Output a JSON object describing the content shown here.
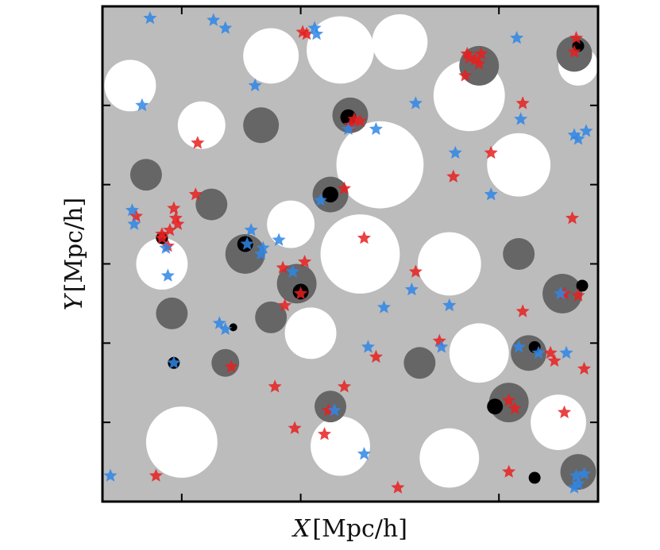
{
  "chart_data": {
    "type": "scatter",
    "title": "",
    "xlabel": "X [Mpc/h]",
    "ylabel": "Y [Mpc/h]",
    "xlim": [
      0,
      250
    ],
    "ylim": [
      0,
      250
    ],
    "x_ticks": [
      0,
      40,
      100,
      200,
      250
    ],
    "y_ticks": [
      0,
      40,
      80,
      120,
      160,
      200,
      250
    ],
    "tick_labels_shown": false,
    "grid": false,
    "legend": "none",
    "background": {
      "kind": "density-field",
      "levels": [
        "void",
        "sheet",
        "filament",
        "knot"
      ],
      "colors": {
        "void": "#ffffff",
        "sheet": "#bcbcbc",
        "filament": "#666666",
        "knot": "#000000"
      },
      "blobs": [
        {
          "level": "void",
          "x": 14,
          "y": 210,
          "r": 13
        },
        {
          "level": "void",
          "x": 85,
          "y": 225,
          "r": 14
        },
        {
          "level": "void",
          "x": 120,
          "y": 228,
          "r": 17
        },
        {
          "level": "void",
          "x": 150,
          "y": 232,
          "r": 14
        },
        {
          "level": "void",
          "x": 185,
          "y": 205,
          "r": 18
        },
        {
          "level": "void",
          "x": 210,
          "y": 170,
          "r": 16
        },
        {
          "level": "void",
          "x": 50,
          "y": 190,
          "r": 12
        },
        {
          "level": "void",
          "x": 140,
          "y": 170,
          "r": 22
        },
        {
          "level": "void",
          "x": 130,
          "y": 125,
          "r": 20
        },
        {
          "level": "void",
          "x": 175,
          "y": 120,
          "r": 16
        },
        {
          "level": "void",
          "x": 95,
          "y": 140,
          "r": 12
        },
        {
          "level": "void",
          "x": 30,
          "y": 120,
          "r": 13
        },
        {
          "level": "void",
          "x": 105,
          "y": 85,
          "r": 13
        },
        {
          "level": "void",
          "x": 190,
          "y": 75,
          "r": 15
        },
        {
          "level": "void",
          "x": 40,
          "y": 30,
          "r": 18
        },
        {
          "level": "void",
          "x": 120,
          "y": 28,
          "r": 15
        },
        {
          "level": "void",
          "x": 175,
          "y": 22,
          "r": 15
        },
        {
          "level": "void",
          "x": 230,
          "y": 40,
          "r": 14
        },
        {
          "level": "void",
          "x": 240,
          "y": 220,
          "r": 10
        },
        {
          "level": "filament",
          "x": 35,
          "y": 95,
          "r": 8
        },
        {
          "level": "filament",
          "x": 55,
          "y": 150,
          "r": 8
        },
        {
          "level": "filament",
          "x": 80,
          "y": 190,
          "r": 9
        },
        {
          "level": "filament",
          "x": 72,
          "y": 125,
          "r": 10
        },
        {
          "level": "filament",
          "x": 98,
          "y": 110,
          "r": 10
        },
        {
          "level": "filament",
          "x": 115,
          "y": 155,
          "r": 9
        },
        {
          "level": "filament",
          "x": 125,
          "y": 195,
          "r": 9
        },
        {
          "level": "filament",
          "x": 190,
          "y": 220,
          "r": 10
        },
        {
          "level": "filament",
          "x": 238,
          "y": 226,
          "r": 9
        },
        {
          "level": "filament",
          "x": 210,
          "y": 125,
          "r": 8
        },
        {
          "level": "filament",
          "x": 232,
          "y": 105,
          "r": 10
        },
        {
          "level": "filament",
          "x": 215,
          "y": 75,
          "r": 9
        },
        {
          "level": "filament",
          "x": 205,
          "y": 50,
          "r": 10
        },
        {
          "level": "filament",
          "x": 160,
          "y": 70,
          "r": 8
        },
        {
          "level": "filament",
          "x": 115,
          "y": 48,
          "r": 8
        },
        {
          "level": "filament",
          "x": 62,
          "y": 70,
          "r": 7
        },
        {
          "level": "filament",
          "x": 22,
          "y": 165,
          "r": 8
        },
        {
          "level": "filament",
          "x": 85,
          "y": 93,
          "r": 8
        },
        {
          "level": "filament",
          "x": 240,
          "y": 15,
          "r": 9
        },
        {
          "level": "knot",
          "x": 124,
          "y": 194,
          "r": 4
        },
        {
          "level": "knot",
          "x": 115,
          "y": 155,
          "r": 4
        },
        {
          "level": "knot",
          "x": 72,
          "y": 130,
          "r": 4
        },
        {
          "level": "knot",
          "x": 30,
          "y": 133,
          "r": 3
        },
        {
          "level": "knot",
          "x": 100,
          "y": 106,
          "r": 4
        },
        {
          "level": "knot",
          "x": 36,
          "y": 70,
          "r": 3
        },
        {
          "level": "knot",
          "x": 198,
          "y": 48,
          "r": 4
        },
        {
          "level": "knot",
          "x": 242,
          "y": 109,
          "r": 3
        },
        {
          "level": "knot",
          "x": 240,
          "y": 230,
          "r": 3
        },
        {
          "level": "knot",
          "x": 218,
          "y": 78,
          "r": 3
        },
        {
          "level": "knot",
          "x": 218,
          "y": 12,
          "r": 3
        },
        {
          "level": "knot",
          "x": 66,
          "y": 88,
          "r": 2
        }
      ]
    },
    "series": [
      {
        "color": "#e82020",
        "marker": "star",
        "points": [
          [
            101,
            237
          ],
          [
            103,
            236
          ],
          [
            184,
            226
          ],
          [
            185,
            224
          ],
          [
            188,
            223
          ],
          [
            191,
            226
          ],
          [
            190,
            221
          ],
          [
            183,
            215
          ],
          [
            239,
            234
          ],
          [
            238,
            227
          ],
          [
            212,
            201
          ],
          [
            127,
            193
          ],
          [
            130,
            192
          ],
          [
            125,
            190
          ],
          [
            48,
            181
          ],
          [
            196,
            176
          ],
          [
            177,
            164
          ],
          [
            122,
            158
          ],
          [
            47,
            155
          ],
          [
            237,
            143
          ],
          [
            36,
            148
          ],
          [
            37,
            143
          ],
          [
            38,
            140
          ],
          [
            17,
            144
          ],
          [
            30,
            135
          ],
          [
            34,
            137
          ],
          [
            30,
            133
          ],
          [
            33,
            129
          ],
          [
            132,
            133
          ],
          [
            102,
            121
          ],
          [
            91,
            118
          ],
          [
            158,
            116
          ],
          [
            100,
            105
          ],
          [
            92,
            99
          ],
          [
            233,
            105
          ],
          [
            240,
            104
          ],
          [
            212,
            96
          ],
          [
            170,
            81
          ],
          [
            226,
            75
          ],
          [
            228,
            71
          ],
          [
            65,
            68
          ],
          [
            243,
            67
          ],
          [
            138,
            73
          ],
          [
            87,
            58
          ],
          [
            122,
            58
          ],
          [
            114,
            46
          ],
          [
            205,
            51
          ],
          [
            208,
            47
          ],
          [
            233,
            45
          ],
          [
            97,
            37
          ],
          [
            112,
            34
          ],
          [
            27,
            13
          ],
          [
            149,
            7
          ],
          [
            205,
            15
          ]
        ]
      },
      {
        "color": "#2f86e6",
        "marker": "star",
        "points": [
          [
            24,
            244
          ],
          [
            56,
            243
          ],
          [
            62,
            239
          ],
          [
            107,
            239
          ],
          [
            108,
            236
          ],
          [
            209,
            234
          ],
          [
            77,
            210
          ],
          [
            20,
            200
          ],
          [
            158,
            201
          ],
          [
            124,
            188
          ],
          [
            138,
            188
          ],
          [
            211,
            193
          ],
          [
            178,
            176
          ],
          [
            238,
            185
          ],
          [
            240,
            183
          ],
          [
            244,
            187
          ],
          [
            196,
            155
          ],
          [
            110,
            152
          ],
          [
            15,
            147
          ],
          [
            16,
            140
          ],
          [
            75,
            137
          ],
          [
            89,
            132
          ],
          [
            73,
            130
          ],
          [
            32,
            128
          ],
          [
            81,
            128
          ],
          [
            80,
            125
          ],
          [
            33,
            114
          ],
          [
            96,
            116
          ],
          [
            156,
            107
          ],
          [
            231,
            105
          ],
          [
            175,
            99
          ],
          [
            142,
            98
          ],
          [
            59,
            90
          ],
          [
            62,
            87
          ],
          [
            134,
            78
          ],
          [
            171,
            78
          ],
          [
            210,
            78
          ],
          [
            220,
            75
          ],
          [
            234,
            75
          ],
          [
            36,
            70
          ],
          [
            117,
            46
          ],
          [
            132,
            24
          ],
          [
            4,
            13
          ],
          [
            239,
            13
          ],
          [
            240,
            9
          ],
          [
            243,
            14
          ],
          [
            238,
            7
          ]
        ]
      }
    ]
  }
}
